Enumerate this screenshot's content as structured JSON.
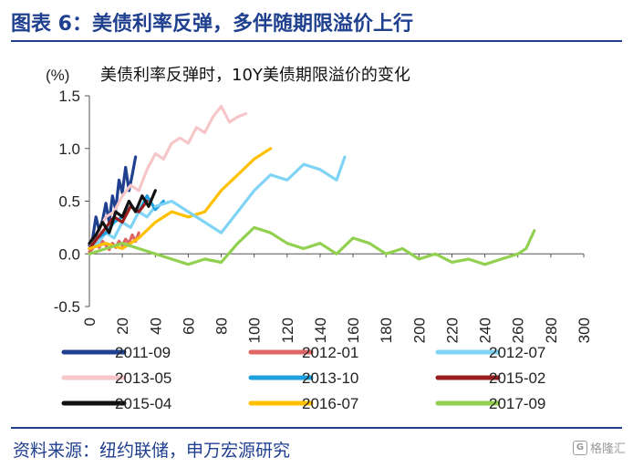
{
  "header": {
    "title": "图表 6：美债利率反弹，多伴随期限溢价上行"
  },
  "footer": {
    "source": "资料来源：纽约联储，申万宏源研究",
    "watermark_text": "格隆汇",
    "watermark_icon": "g-logo-icon"
  },
  "chart_data": {
    "type": "line",
    "title": "美债利率反弹时，10Y美债期限溢价的变化",
    "unit_label": "(%)",
    "xlim": [
      0,
      300
    ],
    "ylim": [
      -0.5,
      1.5
    ],
    "x_ticks": [
      "0",
      "20",
      "40",
      "60",
      "80",
      "100",
      "120",
      "140",
      "160",
      "180",
      "200",
      "220",
      "240",
      "260",
      "280",
      "300"
    ],
    "y_ticks": [
      "1.5",
      "1.0",
      "0.5",
      "0.0",
      "-0.5"
    ],
    "grid": false,
    "legend_position": "bottom",
    "series": [
      {
        "name": "2011-09",
        "color": "#1f3f8f",
        "x": [
          0,
          2,
          4,
          6,
          8,
          10,
          12,
          14,
          16,
          18,
          20,
          22,
          24,
          26,
          28
        ],
        "y": [
          0.08,
          0.15,
          0.35,
          0.22,
          0.32,
          0.48,
          0.3,
          0.55,
          0.42,
          0.7,
          0.58,
          0.82,
          0.6,
          0.75,
          0.92
        ]
      },
      {
        "name": "2012-01",
        "color": "#e06666",
        "x": [
          0,
          2,
          4,
          6,
          8,
          10,
          12,
          14,
          16,
          18,
          20,
          22,
          24,
          26,
          28,
          30
        ],
        "y": [
          0.02,
          0.05,
          0.1,
          0.06,
          0.12,
          0.08,
          0.04,
          0.1,
          0.06,
          0.12,
          0.08,
          0.14,
          0.1,
          0.18,
          0.12,
          0.2
        ]
      },
      {
        "name": "2012-07",
        "color": "#7fd3f5",
        "x": [
          0,
          5,
          10,
          15,
          20,
          25,
          30,
          35,
          40
        ],
        "y": [
          0.05,
          0.1,
          0.2,
          0.15,
          0.3,
          0.25,
          0.4,
          0.35,
          0.45
        ]
      },
      {
        "name": "2013-05",
        "color": "#f6c6c8",
        "x": [
          0,
          5,
          10,
          15,
          20,
          25,
          30,
          35,
          40,
          45,
          50,
          55,
          60,
          65,
          70,
          75,
          80,
          85,
          90,
          95
        ],
        "y": [
          0.05,
          0.2,
          0.35,
          0.4,
          0.55,
          0.65,
          0.6,
          0.8,
          0.95,
          0.9,
          1.05,
          1.1,
          1.05,
          1.2,
          1.15,
          1.3,
          1.4,
          1.25,
          1.3,
          1.33
        ]
      },
      {
        "name": "2013-10",
        "color": "#1ea0e0",
        "x": [
          0,
          5,
          10,
          15,
          20,
          25,
          30,
          35,
          40,
          45
        ],
        "y": [
          0.05,
          0.15,
          0.2,
          0.3,
          0.35,
          0.45,
          0.4,
          0.55,
          0.42,
          0.5
        ]
      },
      {
        "name": "2015-02",
        "color": "#9b1c1c",
        "x": [
          0,
          5,
          10,
          15,
          20,
          25,
          30,
          35
        ],
        "y": [
          0.05,
          0.15,
          0.25,
          0.35,
          0.3,
          0.45,
          0.4,
          0.5
        ]
      },
      {
        "name": "2015-04",
        "color": "#111111",
        "x": [
          0,
          4,
          8,
          12,
          16,
          20,
          24,
          28,
          32,
          36,
          40
        ],
        "y": [
          0.1,
          0.18,
          0.3,
          0.2,
          0.4,
          0.35,
          0.5,
          0.4,
          0.55,
          0.45,
          0.6
        ]
      },
      {
        "name": "2016-07",
        "color": "#ffc000",
        "x": [
          0,
          10,
          20,
          30,
          40,
          50,
          60,
          70,
          80,
          90,
          100,
          110
        ],
        "y": [
          0.05,
          0.1,
          0.05,
          0.15,
          0.3,
          0.4,
          0.35,
          0.4,
          0.6,
          0.75,
          0.9,
          1.0
        ]
      },
      {
        "name": "2012-07-long",
        "color": "#7fd3f5",
        "x": [
          40,
          50,
          60,
          70,
          80,
          90,
          100,
          110,
          120,
          130,
          140,
          150,
          155
        ],
        "y": [
          0.45,
          0.5,
          0.4,
          0.3,
          0.2,
          0.4,
          0.6,
          0.75,
          0.7,
          0.85,
          0.8,
          0.7,
          0.92
        ]
      },
      {
        "name": "2017-09",
        "color": "#92d050",
        "x": [
          0,
          10,
          20,
          30,
          40,
          50,
          60,
          70,
          80,
          90,
          100,
          110,
          120,
          130,
          140,
          150,
          160,
          170,
          180,
          190,
          200,
          210,
          220,
          230,
          240,
          250,
          260,
          265,
          270
        ],
        "y": [
          0.0,
          0.05,
          0.1,
          0.05,
          0.0,
          -0.05,
          -0.1,
          -0.05,
          -0.08,
          0.1,
          0.25,
          0.2,
          0.1,
          0.05,
          0.1,
          0.0,
          0.15,
          0.1,
          0.0,
          0.05,
          -0.05,
          0.0,
          -0.08,
          -0.05,
          -0.1,
          -0.05,
          0.0,
          0.05,
          0.22
        ]
      }
    ],
    "legend": [
      {
        "name": "2011-09",
        "color": "#1f3f8f"
      },
      {
        "name": "2012-01",
        "color": "#e06666"
      },
      {
        "name": "2012-07",
        "color": "#7fd3f5"
      },
      {
        "name": "2013-05",
        "color": "#f6c6c8"
      },
      {
        "name": "2013-10",
        "color": "#1ea0e0"
      },
      {
        "name": "2015-02",
        "color": "#9b1c1c"
      },
      {
        "name": "2015-04",
        "color": "#111111"
      },
      {
        "name": "2016-07",
        "color": "#ffc000"
      },
      {
        "name": "2017-09",
        "color": "#92d050"
      }
    ]
  }
}
